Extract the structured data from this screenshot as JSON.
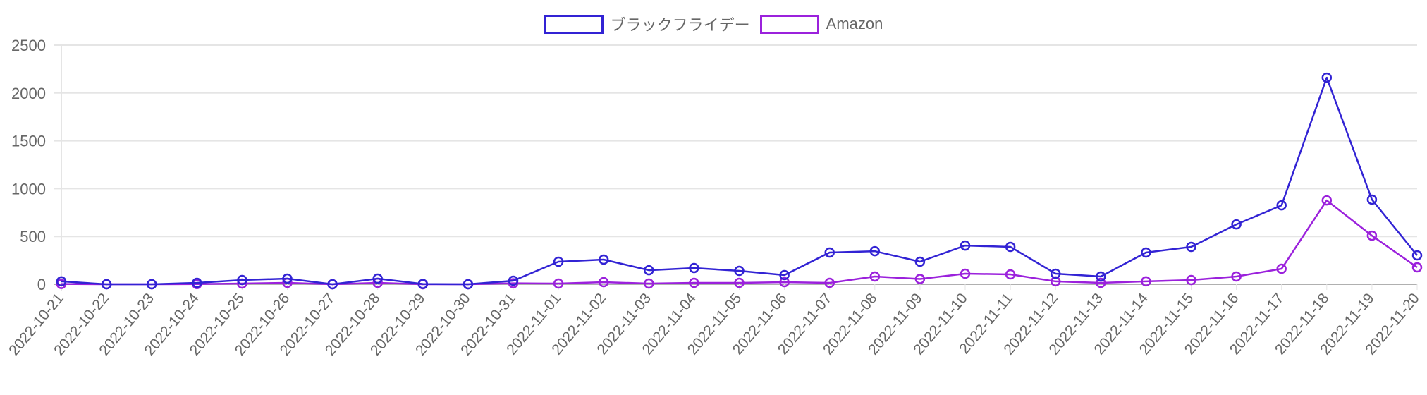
{
  "chart_data": {
    "type": "line",
    "title": "",
    "xlabel": "",
    "ylabel": "",
    "ylim": [
      0,
      2500
    ],
    "yticks": [
      0,
      500,
      1000,
      1500,
      2000,
      2500
    ],
    "grid": true,
    "legend_position": "top",
    "categories": [
      "2022-10-21",
      "2022-10-22",
      "2022-10-23",
      "2022-10-24",
      "2022-10-25",
      "2022-10-26",
      "2022-10-27",
      "2022-10-28",
      "2022-10-29",
      "2022-10-30",
      "2022-10-31",
      "2022-11-01",
      "2022-11-02",
      "2022-11-03",
      "2022-11-04",
      "2022-11-05",
      "2022-11-06",
      "2022-11-07",
      "2022-11-08",
      "2022-11-09",
      "2022-11-10",
      "2022-11-11",
      "2022-11-12",
      "2022-11-13",
      "2022-11-14",
      "2022-11-15",
      "2022-11-16",
      "2022-11-17",
      "2022-11-18",
      "2022-11-19",
      "2022-11-20"
    ],
    "series": [
      {
        "name": "ブラックフライデー",
        "color": "#3223d4",
        "values": [
          30,
          0,
          0,
          15,
          44,
          59,
          0,
          59,
          3,
          0,
          37,
          236,
          258,
          147,
          170,
          140,
          96,
          332,
          346,
          236,
          405,
          391,
          111,
          81,
          332,
          391,
          626,
          825,
          2160,
          885,
          302
        ]
      },
      {
        "name": "Amazon",
        "color": "#9b21dc",
        "values": [
          3,
          0,
          0,
          2,
          7,
          15,
          0,
          15,
          0,
          0,
          10,
          7,
          22,
          7,
          15,
          15,
          22,
          15,
          81,
          55,
          111,
          103,
          30,
          15,
          30,
          44,
          81,
          162,
          877,
          508,
          177
        ]
      }
    ]
  },
  "legend": {
    "items": [
      {
        "label": "ブラックフライデー",
        "color": "#3223d4"
      },
      {
        "label": "Amazon",
        "color": "#9b21dc"
      }
    ]
  },
  "colors": {
    "grid": "#e5e5e5",
    "axis": "#b0b0b0",
    "tick_text": "#666666"
  }
}
